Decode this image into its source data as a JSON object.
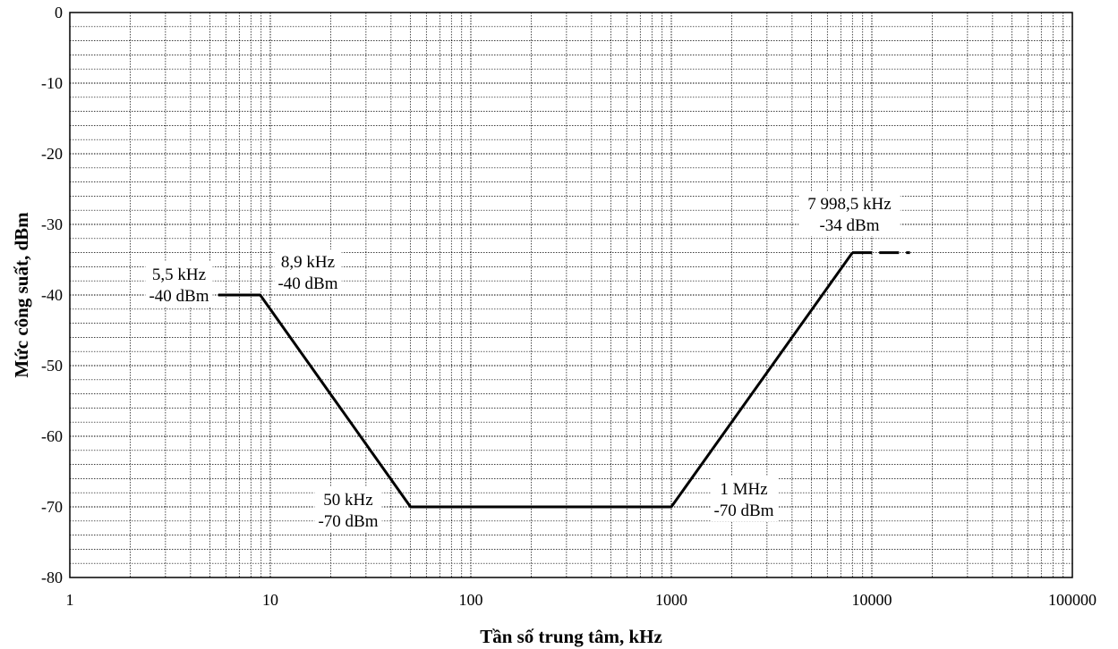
{
  "chart_data": {
    "type": "line",
    "x_scale": "log",
    "xlabel": "Tần số trung tâm, kHz",
    "ylabel": "Mức công suất, dBm",
    "xlim": [
      1,
      100000
    ],
    "ylim": [
      -80,
      0
    ],
    "x_ticks": [
      1,
      10,
      100,
      1000,
      10000,
      100000
    ],
    "x_tick_labels": [
      "1",
      "10",
      "100",
      "1000",
      "10000",
      "100000"
    ],
    "y_ticks": [
      0,
      -10,
      -20,
      -30,
      -40,
      -50,
      -60,
      -70,
      -80
    ],
    "y_tick_labels": [
      "0",
      "-10",
      "-20",
      "-30",
      "-40",
      "-50",
      "-60",
      "-70",
      "-80"
    ],
    "grid": true,
    "series": [
      {
        "style": "solid",
        "x": [
          5.5,
          8.9,
          50,
          1000,
          7998.5
        ],
        "y": [
          -40,
          -40,
          -70,
          -70,
          -34
        ]
      },
      {
        "style": "dashed",
        "x": [
          7998.5,
          15500
        ],
        "y": [
          -34,
          -34
        ]
      }
    ],
    "annotations": [
      {
        "key": "a1",
        "lines": [
          "5,5 kHz",
          "-40 dBm"
        ]
      },
      {
        "key": "a2",
        "lines": [
          "8,9 kHz",
          "-40 dBm"
        ]
      },
      {
        "key": "a3",
        "lines": [
          "50 kHz",
          "-70 dBm"
        ]
      },
      {
        "key": "a4",
        "lines": [
          "1 MHz",
          "-70 dBm"
        ]
      },
      {
        "key": "a5",
        "lines": [
          "7 998,5 kHz",
          "-34 dBm"
        ]
      }
    ]
  }
}
